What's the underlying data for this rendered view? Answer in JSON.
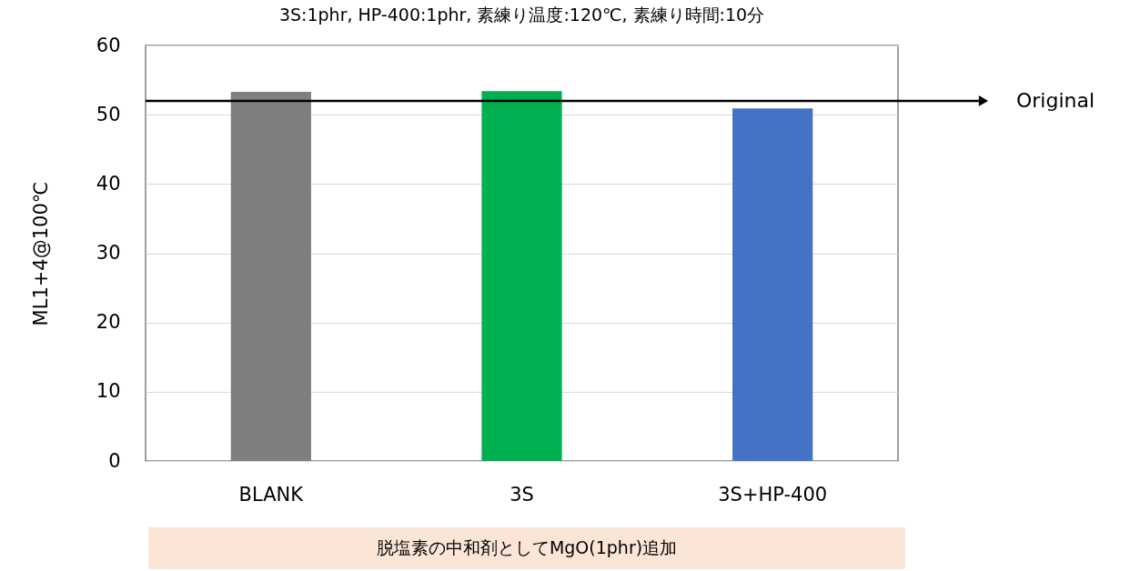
{
  "chart_data": {
    "type": "bar",
    "title": "3S:1phr, HP-400:1phr, 素練り温度:120℃, 素練り時間:10分",
    "ylabel": "ML1+4@100℃",
    "categories": [
      "BLANK",
      "3S",
      "3S+HP-400"
    ],
    "values": [
      53.3,
      53.4,
      50.9
    ],
    "colors": [
      "#7f7f7f",
      "#00b050",
      "#4472c4"
    ],
    "ylim": [
      0,
      60
    ],
    "yticks": [
      0,
      10,
      20,
      30,
      40,
      50,
      60
    ],
    "grid": "y",
    "ref_lines": [
      {
        "axis": "y",
        "value": 52,
        "label": "Original",
        "color": "#000000"
      }
    ],
    "annotations": [
      "脱塩素の中和剤としてMgO(1phr)追加"
    ]
  }
}
